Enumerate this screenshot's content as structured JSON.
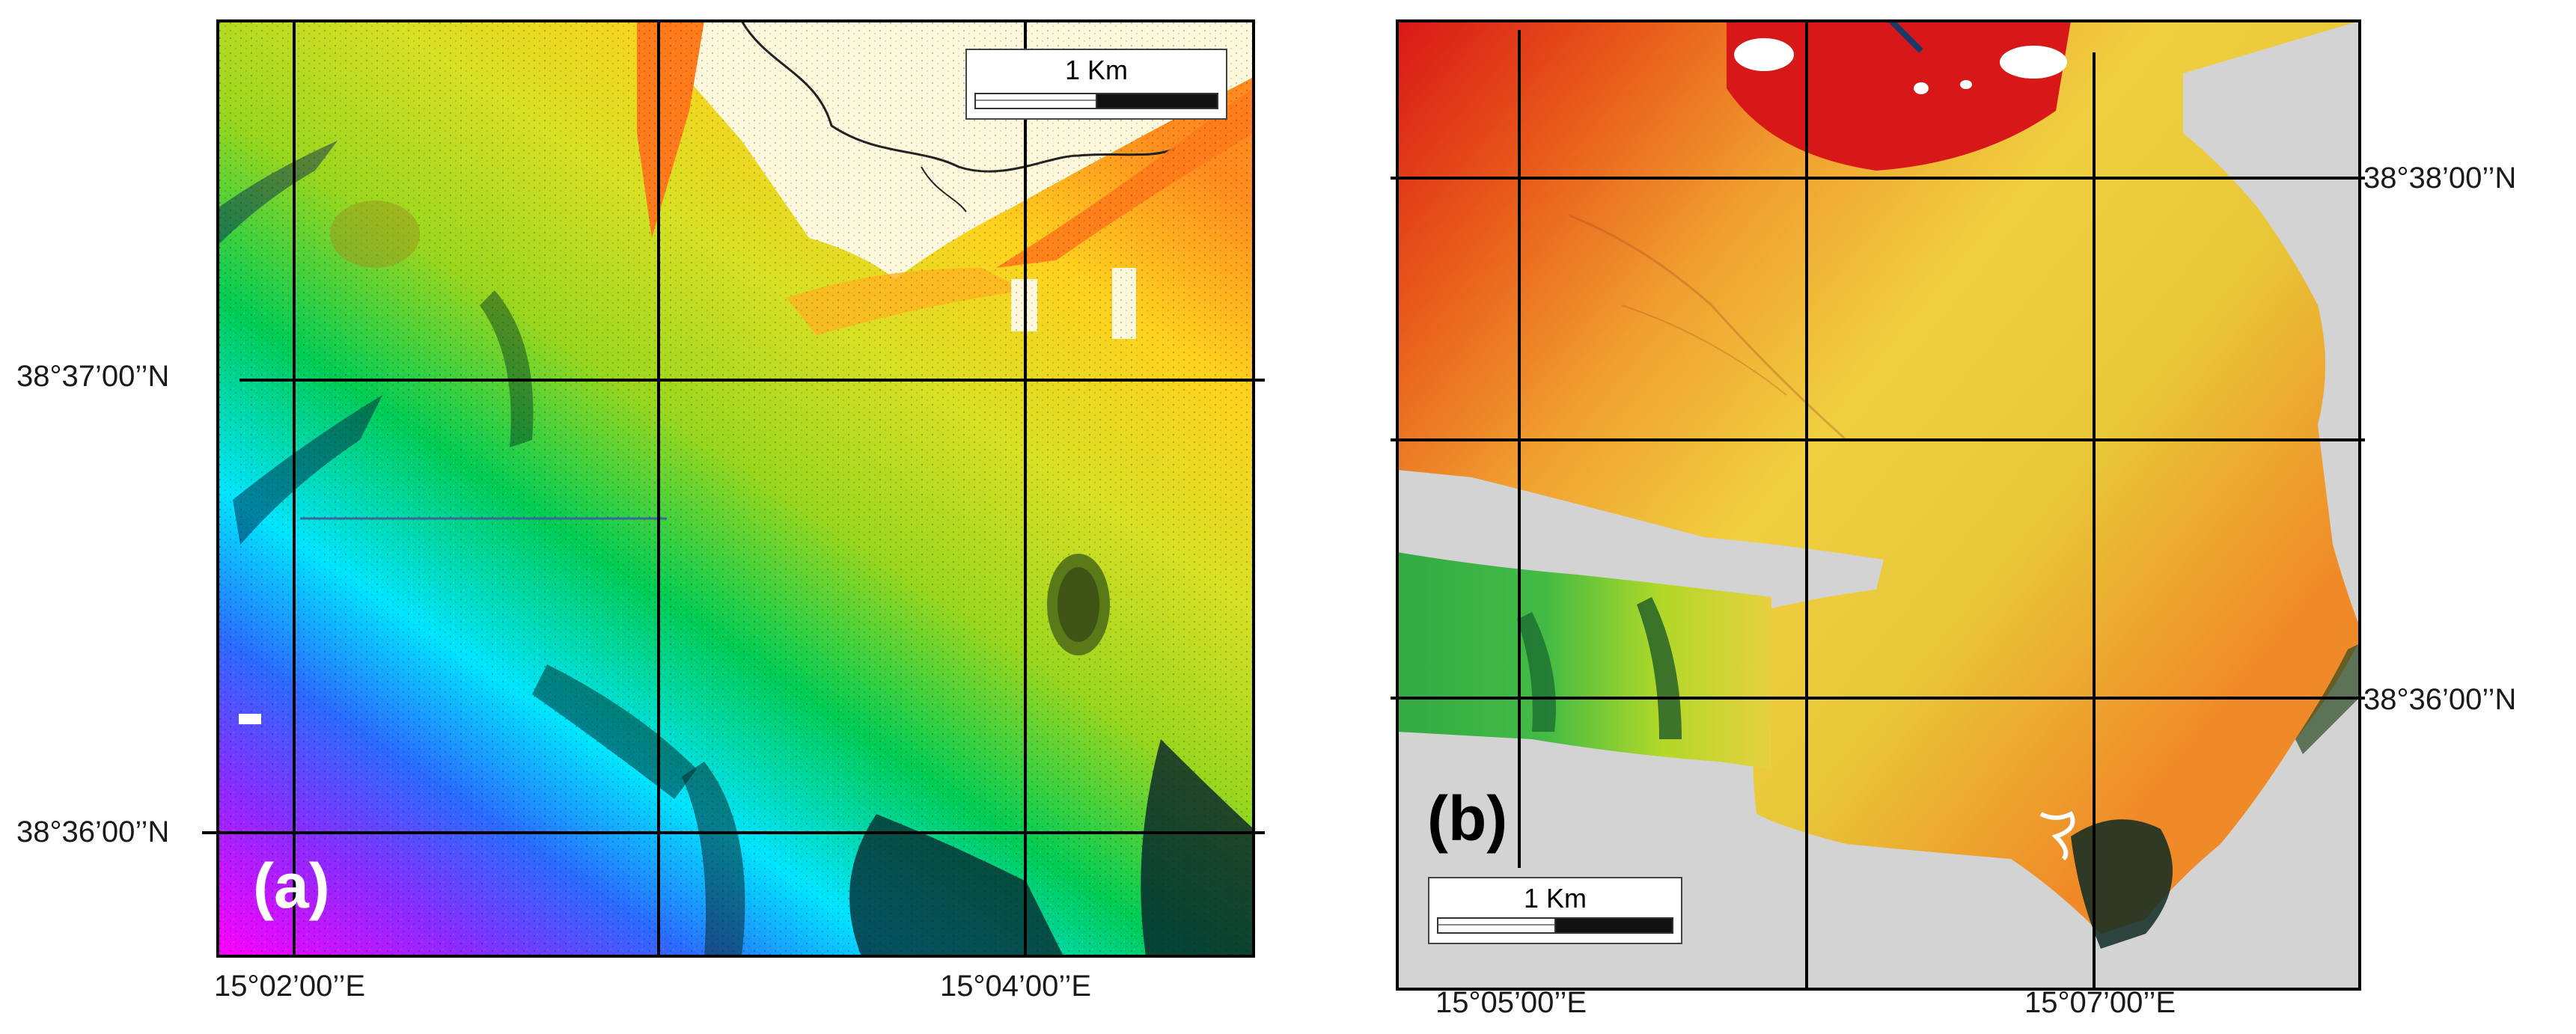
{
  "figure": {
    "panels": [
      {
        "id": "a",
        "letter": "(a)",
        "scale_label": "1 Km",
        "lat_labels": [
          "38°37’00’’N",
          "38°36’00’’N"
        ],
        "lon_labels": [
          "15°02’00’’E",
          "15°04’00’’E"
        ],
        "color_ramp": [
          "#ff00ff",
          "#2a6bff",
          "#00e5ff",
          "#00cc55",
          "#aadd22",
          "#ffe020",
          "#ff9020",
          "#e02010"
        ],
        "land_color": "#fdf8dc"
      },
      {
        "id": "b",
        "letter": "(b)",
        "scale_label": "1 Km",
        "lat_labels": [
          "38°38’00’’N",
          "38°36’00’’N"
        ],
        "lon_labels": [
          "15°05’00’’E",
          "15°07’00’’E"
        ],
        "color_ramp": [
          "#0a6a3a",
          "#33bb44",
          "#aadd22",
          "#f0d040",
          "#f0a030",
          "#e85a1a",
          "#d81818"
        ],
        "nodata_color": "#d3d3d3"
      }
    ]
  }
}
